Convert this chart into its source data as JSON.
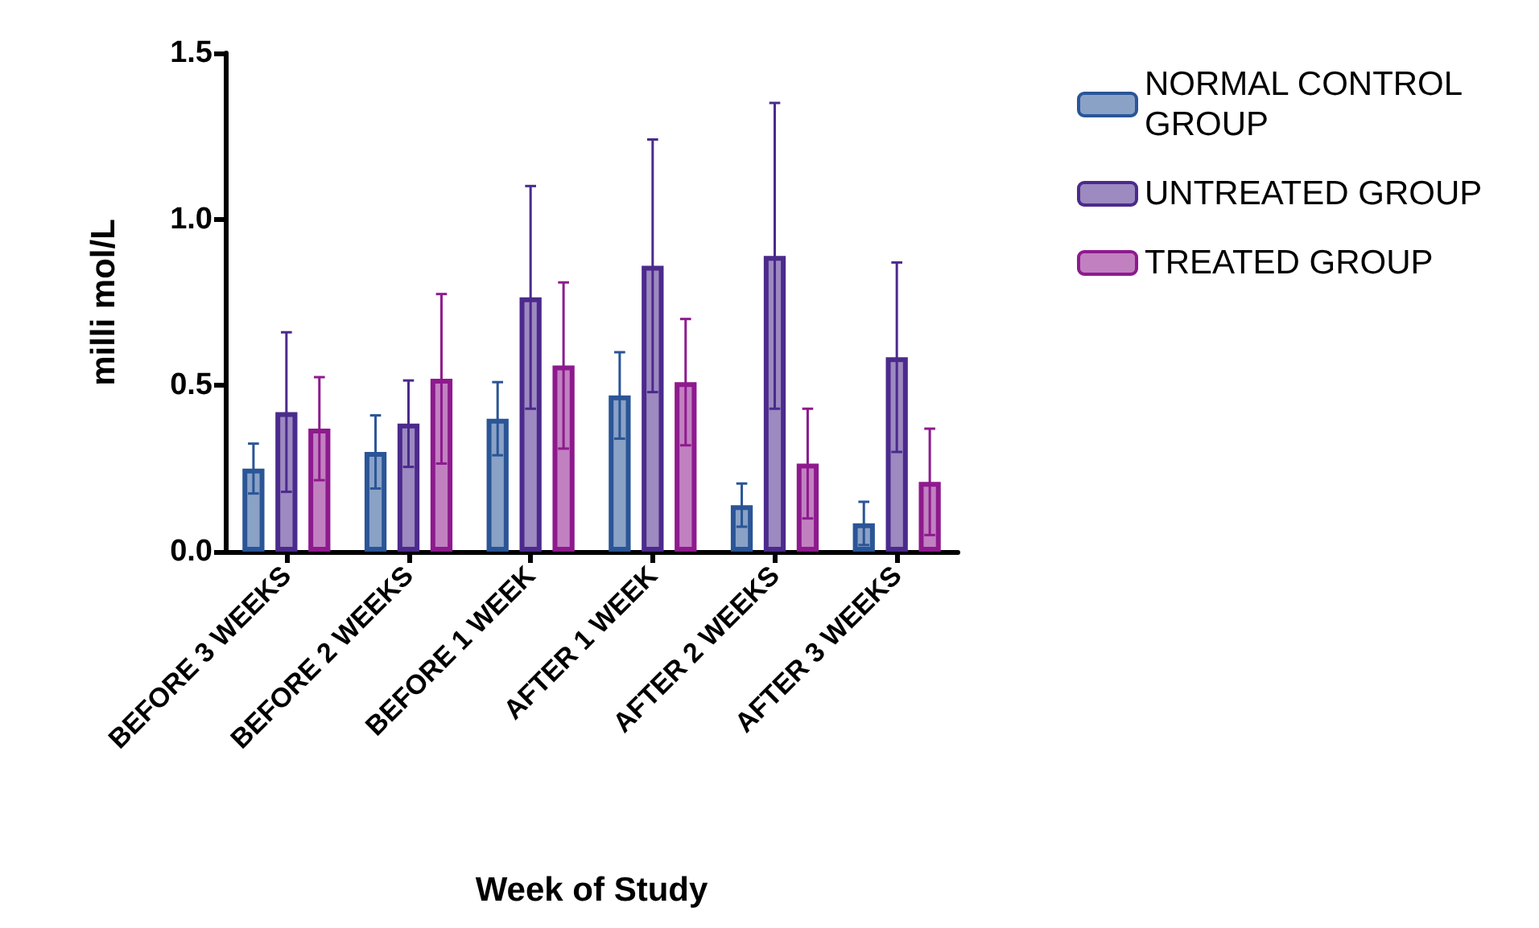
{
  "chart_data": {
    "type": "bar",
    "xlabel": "Week of Study",
    "ylabel": "milli mol/L",
    "categories": [
      "BEFORE 3 WEEKS",
      "BEFORE 2 WEEKS",
      "BEFORE 1 WEEK",
      "AFTER 1 WEEK",
      "AFTER 2 WEEKS",
      "AFTER 3 WEEKS"
    ],
    "series": [
      {
        "name": "NORMAL CONTROL GROUP",
        "color": "#2a5597",
        "values": [
          0.25,
          0.3,
          0.4,
          0.47,
          0.14,
          0.085
        ],
        "errors": [
          0.075,
          0.11,
          0.11,
          0.13,
          0.065,
          0.065
        ]
      },
      {
        "name": "UNTREATED GROUP",
        "color": "#4b2a8c",
        "values": [
          0.42,
          0.385,
          0.765,
          0.86,
          0.89,
          0.585
        ],
        "errors": [
          0.24,
          0.13,
          0.335,
          0.38,
          0.46,
          0.285
        ]
      },
      {
        "name": "TREATED GROUP",
        "color": "#8e1a8e",
        "values": [
          0.37,
          0.52,
          0.56,
          0.51,
          0.265,
          0.21
        ],
        "errors": [
          0.155,
          0.255,
          0.25,
          0.19,
          0.165,
          0.16
        ]
      }
    ],
    "ylim": [
      0,
      1.5
    ],
    "yticks": [
      {
        "value": 0,
        "label": "0.0"
      },
      {
        "value": 0.5,
        "label": "0.5"
      },
      {
        "value": 1,
        "label": "1.0"
      },
      {
        "value": 1.5,
        "label": "1.5"
      }
    ],
    "grid": false,
    "legend": "top right"
  }
}
